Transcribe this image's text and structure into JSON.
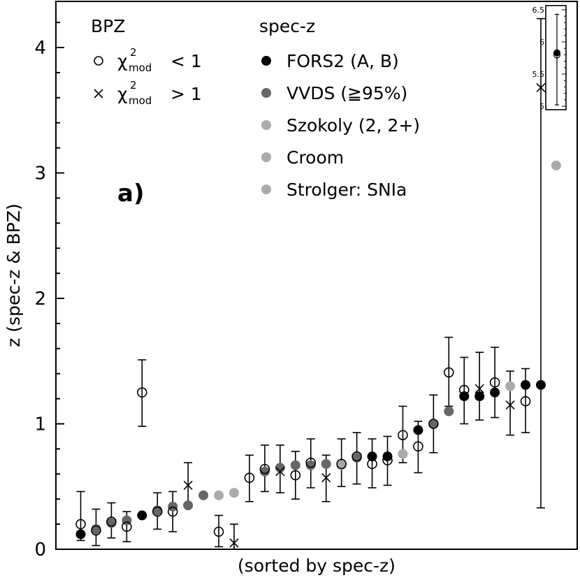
{
  "chart_data": {
    "type": "scatter",
    "title": "",
    "panel_label": "a)",
    "xlabel": "(sorted by spec-z)",
    "ylabel": "z (spec-z & BPZ)",
    "ylim": [
      0,
      4.35
    ],
    "yticks": [
      "0",
      "1",
      "2",
      "3",
      "4"
    ],
    "legend_left": {
      "title": "BPZ",
      "entries": [
        {
          "marker": "circle",
          "label_prefix": "χ",
          "sup": "2",
          "sub": "mod",
          "relation": "< 1"
        },
        {
          "marker": "cross",
          "label_prefix": "χ",
          "sup": "2",
          "sub": "mod",
          "relation": "> 1"
        }
      ]
    },
    "legend_right": {
      "title": "spec-z",
      "entries": [
        {
          "label": "FORS2 (A, B)",
          "color": "#000000"
        },
        {
          "label": "VVDS (≧95%)",
          "color": "#666666"
        },
        {
          "label": "Szokoly (2, 2+)",
          "color": "#aaaaaa"
        },
        {
          "label": "Croom",
          "color": "#aaaaaa"
        },
        {
          "label": "Strolger: SNIa",
          "color": "#aaaaaa"
        }
      ]
    },
    "series": [
      {
        "name": "spec-z",
        "points": [
          {
            "i": 1,
            "z": 0.12,
            "source": "FORS2"
          },
          {
            "i": 2,
            "z": 0.16,
            "source": "VVDS"
          },
          {
            "i": 3,
            "z": 0.21,
            "source": "VVDS"
          },
          {
            "i": 4,
            "z": 0.23,
            "source": "VVDS"
          },
          {
            "i": 5,
            "z": 0.27,
            "source": "FORS2"
          },
          {
            "i": 6,
            "z": 0.31,
            "source": "VVDS"
          },
          {
            "i": 7,
            "z": 0.34,
            "source": "VVDS"
          },
          {
            "i": 8,
            "z": 0.35,
            "source": "VVDS"
          },
          {
            "i": 9,
            "z": 0.43,
            "source": "VVDS"
          },
          {
            "i": 10,
            "z": 0.43,
            "source": "Szokoly"
          },
          {
            "i": 11,
            "z": 0.45,
            "source": "Croom"
          },
          {
            "i": 13,
            "z": 0.62,
            "source": "VVDS"
          },
          {
            "i": 14,
            "z": 0.65,
            "source": "VVDS"
          },
          {
            "i": 15,
            "z": 0.67,
            "source": "VVDS"
          },
          {
            "i": 16,
            "z": 0.67,
            "source": "VVDS"
          },
          {
            "i": 17,
            "z": 0.68,
            "source": "VVDS"
          },
          {
            "i": 18,
            "z": 0.67,
            "source": "Szokoly"
          },
          {
            "i": 19,
            "z": 0.73,
            "source": "VVDS"
          },
          {
            "i": 20,
            "z": 0.74,
            "source": "FORS2"
          },
          {
            "i": 21,
            "z": 0.74,
            "source": "FORS2"
          },
          {
            "i": 22,
            "z": 0.76,
            "source": "Szokoly"
          },
          {
            "i": 23,
            "z": 0.95,
            "source": "FORS2"
          },
          {
            "i": 24,
            "z": 1.0,
            "source": "VVDS"
          },
          {
            "i": 25,
            "z": 1.1,
            "source": "VVDS"
          },
          {
            "i": 26,
            "z": 1.22,
            "source": "FORS2"
          },
          {
            "i": 27,
            "z": 1.22,
            "source": "FORS2"
          },
          {
            "i": 28,
            "z": 1.25,
            "source": "FORS2"
          },
          {
            "i": 29,
            "z": 1.3,
            "source": "Szokoly"
          },
          {
            "i": 30,
            "z": 1.31,
            "source": "FORS2"
          },
          {
            "i": 31,
            "z": 1.31,
            "source": "FORS2"
          },
          {
            "i": 32,
            "z": 3.06,
            "source": "Strolger"
          }
        ]
      },
      {
        "name": "BPZ",
        "points": [
          {
            "i": 1,
            "z": 0.2,
            "lo": 0.07,
            "hi": 0.46,
            "marker": "circle"
          },
          {
            "i": 2,
            "z": 0.15,
            "lo": 0.03,
            "hi": 0.32,
            "marker": "circle"
          },
          {
            "i": 3,
            "z": 0.22,
            "lo": 0.09,
            "hi": 0.37,
            "marker": "circle"
          },
          {
            "i": 4,
            "z": 0.18,
            "lo": 0.06,
            "hi": 0.3,
            "marker": "circle"
          },
          {
            "i": 5,
            "z": 1.25,
            "lo": 0.98,
            "hi": 1.51,
            "marker": "circle"
          },
          {
            "i": 6,
            "z": 0.3,
            "lo": 0.16,
            "hi": 0.45,
            "marker": "circle"
          },
          {
            "i": 7,
            "z": 0.3,
            "lo": 0.14,
            "hi": 0.46,
            "marker": "circle"
          },
          {
            "i": 8,
            "z": 0.51,
            "lo": 0.35,
            "hi": 0.69,
            "marker": "cross"
          },
          {
            "i": 10,
            "z": 0.14,
            "lo": 0.02,
            "hi": 0.27,
            "marker": "circle"
          },
          {
            "i": 11,
            "z": 0.05,
            "lo": 0.0,
            "hi": 0.2,
            "marker": "cross"
          },
          {
            "i": 12,
            "z": 0.57,
            "lo": 0.38,
            "hi": 0.75,
            "marker": "circle"
          },
          {
            "i": 13,
            "z": 0.64,
            "lo": 0.46,
            "hi": 0.83,
            "marker": "circle"
          },
          {
            "i": 14,
            "z": 0.62,
            "lo": 0.45,
            "hi": 0.83,
            "marker": "cross"
          },
          {
            "i": 15,
            "z": 0.59,
            "lo": 0.4,
            "hi": 0.78,
            "marker": "circle"
          },
          {
            "i": 16,
            "z": 0.69,
            "lo": 0.49,
            "hi": 0.88,
            "marker": "circle"
          },
          {
            "i": 17,
            "z": 0.57,
            "lo": 0.38,
            "hi": 0.75,
            "marker": "cross"
          },
          {
            "i": 18,
            "z": 0.68,
            "lo": 0.5,
            "hi": 0.88,
            "marker": "circle"
          },
          {
            "i": 19,
            "z": 0.74,
            "lo": 0.52,
            "hi": 0.93,
            "marker": "circle"
          },
          {
            "i": 20,
            "z": 0.68,
            "lo": 0.49,
            "hi": 0.88,
            "marker": "circle"
          },
          {
            "i": 21,
            "z": 0.71,
            "lo": 0.51,
            "hi": 0.9,
            "marker": "circle"
          },
          {
            "i": 22,
            "z": 0.91,
            "lo": 0.69,
            "hi": 1.14,
            "marker": "circle"
          },
          {
            "i": 23,
            "z": 0.82,
            "lo": 0.61,
            "hi": 1.02,
            "marker": "circle"
          },
          {
            "i": 24,
            "z": 1.0,
            "lo": 0.77,
            "hi": 1.23,
            "marker": "circle"
          },
          {
            "i": 25,
            "z": 1.41,
            "lo": 1.14,
            "hi": 1.69,
            "marker": "circle"
          },
          {
            "i": 26,
            "z": 1.27,
            "lo": 1.0,
            "hi": 1.53,
            "marker": "circle"
          },
          {
            "i": 27,
            "z": 1.28,
            "lo": 1.03,
            "hi": 1.57,
            "marker": "cross"
          },
          {
            "i": 28,
            "z": 1.33,
            "lo": 1.05,
            "hi": 1.61,
            "marker": "circle"
          },
          {
            "i": 29,
            "z": 1.15,
            "lo": 0.91,
            "hi": 1.42,
            "marker": "cross"
          },
          {
            "i": 30,
            "z": 1.18,
            "lo": 0.93,
            "hi": 1.44,
            "marker": "circle"
          },
          {
            "i": 31,
            "z": 3.68,
            "lo": 0.33,
            "hi": 4.23,
            "marker": "cross"
          }
        ]
      }
    ],
    "inset": {
      "ylim": [
        4.95,
        6.6
      ],
      "ytick_labels": [
        "5",
        "5.5",
        "6",
        "6.5"
      ],
      "point": {
        "specz": 5.83,
        "bpz": 5.8,
        "lo": 5.02,
        "hi": 6.43,
        "source": "FORS2"
      }
    }
  }
}
